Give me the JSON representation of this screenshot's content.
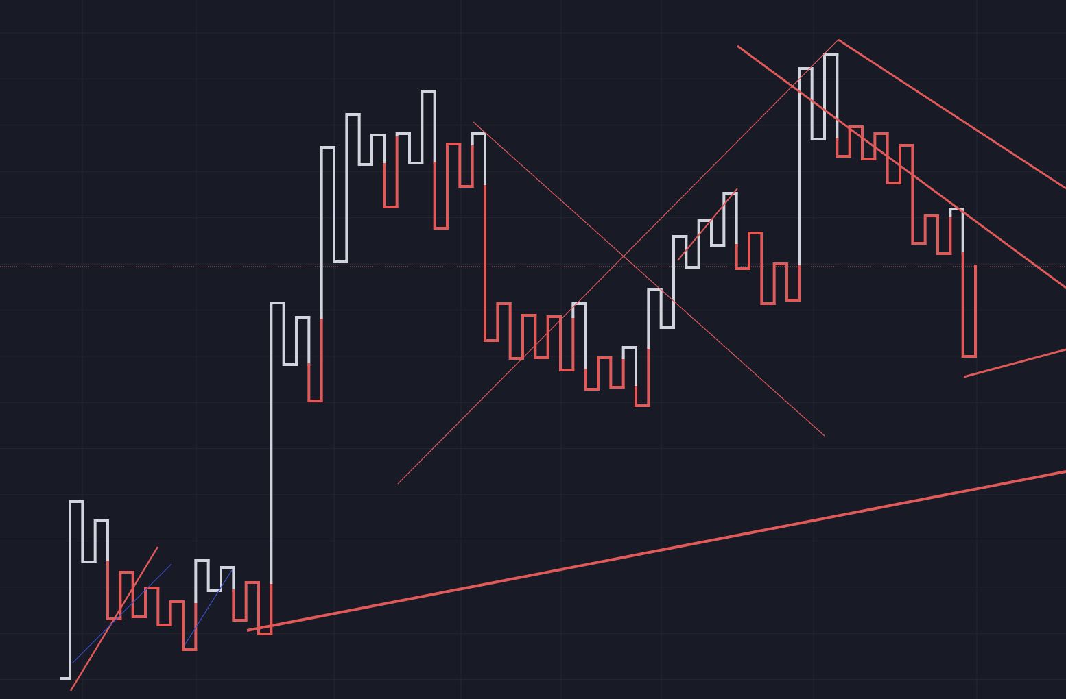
{
  "chart_data": {
    "type": "kagi",
    "values": [
      30,
      288,
      200,
      260,
      117,
      185,
      120,
      162,
      108,
      142,
      72,
      202,
      158,
      192,
      115,
      170,
      95,
      578,
      488,
      557,
      435,
      805,
      638,
      853,
      780,
      823,
      718,
      825,
      782,
      887,
      687,
      810,
      748,
      825,
      523,
      577,
      497,
      560,
      498,
      558,
      480,
      577,
      452,
      498,
      455,
      513,
      428,
      598,
      542,
      675,
      630,
      698,
      662,
      738,
      628,
      680,
      577,
      635,
      582,
      920,
      817,
      940,
      792,
      835,
      788,
      825,
      753,
      808,
      665,
      705,
      650,
      715,
      500,
      632
    ],
    "ylim": [
      0,
      1020
    ],
    "up_color": "#d1d4dc",
    "down_color": "#e05a5a"
  }
}
